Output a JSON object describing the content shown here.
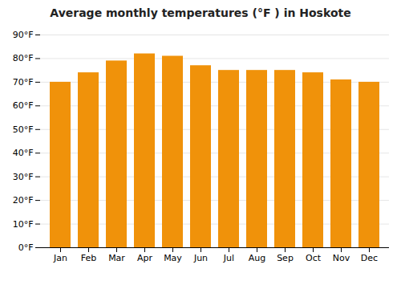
{
  "chart_data": {
    "type": "bar",
    "title": "Average monthly temperatures (°F ) in Hoskote",
    "categories": [
      "Jan",
      "Feb",
      "Mar",
      "Apr",
      "May",
      "Jun",
      "Jul",
      "Aug",
      "Sep",
      "Oct",
      "Nov",
      "Dec"
    ],
    "values": [
      70,
      74,
      79,
      82,
      81,
      77,
      75,
      75,
      75,
      74,
      71,
      70
    ],
    "color": "#F0920A",
    "ylim": [
      0,
      90
    ],
    "yticks": [
      {
        "value": 0,
        "label": "0°F"
      },
      {
        "value": 10,
        "label": "10°F"
      },
      {
        "value": 20,
        "label": "20°F"
      },
      {
        "value": 30,
        "label": "30°F"
      },
      {
        "value": 40,
        "label": "40°F"
      },
      {
        "value": 50,
        "label": "50°F"
      },
      {
        "value": 60,
        "label": "60°F"
      },
      {
        "value": 70,
        "label": "70°F"
      },
      {
        "value": 80,
        "label": "80°F"
      },
      {
        "value": 90,
        "label": "90°F"
      }
    ],
    "grid": true
  }
}
